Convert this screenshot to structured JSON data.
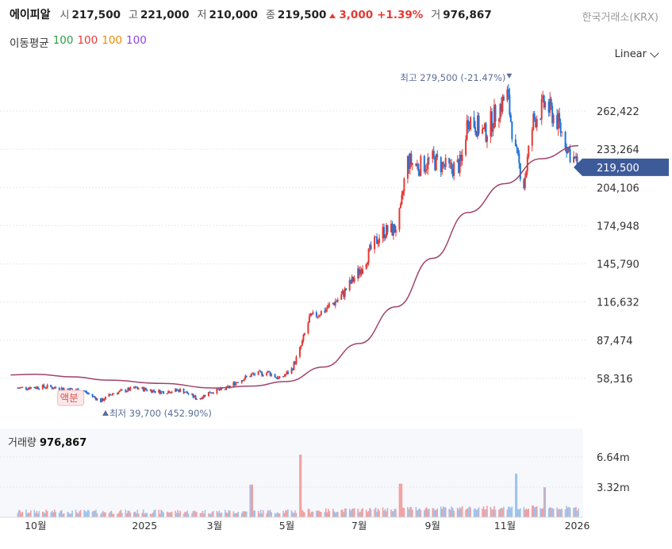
{
  "header": {
    "stock_name": "에이피알",
    "open_label": "시",
    "open_value": "217,500",
    "high_label": "고",
    "high_value": "221,000",
    "low_label": "저",
    "low_value": "210,000",
    "close_label": "종",
    "close_value": "219,500",
    "change_value": "3,000",
    "change_pct": "+1.39%",
    "volume_label": "거",
    "volume_value": "976,867",
    "exchange": "한국거래소(KRX)",
    "up_color": "#e53935"
  },
  "moving_average": {
    "label": "이동평균",
    "periods": [
      "100",
      "100",
      "100",
      "100"
    ],
    "colors": [
      "#2e9e44",
      "#e53935",
      "#f08c00",
      "#8e44ec"
    ]
  },
  "scale_selector": {
    "label": "Linear"
  },
  "chart_data": {
    "type": "candlestick",
    "price_axis_ticks": [
      "262,422",
      "233,264",
      "204,106",
      "174,948",
      "145,790",
      "116,632",
      "87,474",
      "58,316"
    ],
    "price_axis_values": [
      262422,
      233264,
      204106,
      174948,
      145790,
      116632,
      87474,
      58316
    ],
    "current_price_label": "219,500",
    "current_price": 219500,
    "high_annotation": "최고 279,500 (-21.47%)",
    "high_value": 279500,
    "low_annotation": "최저 39,700 (452.90%)",
    "low_value": 39700,
    "event_marker": "액분",
    "time_axis_labels": [
      "10월",
      "2025",
      "3월",
      "5월",
      "7월",
      "9월",
      "11월",
      "2026"
    ],
    "price_path": [
      [
        "2024-09-15",
        51000
      ],
      [
        "2024-10-10",
        52000
      ],
      [
        "2024-10-25",
        50500
      ],
      [
        "2024-11-10",
        49000
      ],
      [
        "2024-11-25",
        41000
      ],
      [
        "2024-12-05",
        47000
      ],
      [
        "2024-12-25",
        51000
      ],
      [
        "2025-01-15",
        48000
      ],
      [
        "2025-02-01",
        49500
      ],
      [
        "2025-02-15",
        42500
      ],
      [
        "2025-02-25",
        48000
      ],
      [
        "2025-03-10",
        50000
      ],
      [
        "2025-03-20",
        56000
      ],
      [
        "2025-04-01",
        61000
      ],
      [
        "2025-04-15",
        63000
      ],
      [
        "2025-04-25",
        58000
      ],
      [
        "2025-05-05",
        65000
      ],
      [
        "2025-05-12",
        80000
      ],
      [
        "2025-05-20",
        104000
      ],
      [
        "2025-06-01",
        110000
      ],
      [
        "2025-06-15",
        120000
      ],
      [
        "2025-07-01",
        140000
      ],
      [
        "2025-07-10",
        155000
      ],
      [
        "2025-07-20",
        170000
      ],
      [
        "2025-07-31",
        172000
      ],
      [
        "2025-08-05",
        185000
      ],
      [
        "2025-08-10",
        225000
      ],
      [
        "2025-08-20",
        220000
      ],
      [
        "2025-09-01",
        225000
      ],
      [
        "2025-09-15",
        218000
      ],
      [
        "2025-09-25",
        222000
      ],
      [
        "2025-10-01",
        258000
      ],
      [
        "2025-10-15",
        245000
      ],
      [
        "2025-10-25",
        262000
      ],
      [
        "2025-11-03",
        275000
      ],
      [
        "2025-11-10",
        230000
      ],
      [
        "2025-11-17",
        207000
      ],
      [
        "2025-11-25",
        255000
      ],
      [
        "2025-12-05",
        268000
      ],
      [
        "2025-12-15",
        255000
      ],
      [
        "2025-12-25",
        232000
      ],
      [
        "2026-01-02",
        219500
      ]
    ],
    "moving_average_100": [
      [
        "2024-09-10",
        61000
      ],
      [
        "2024-10-01",
        61500
      ],
      [
        "2024-11-01",
        59500
      ],
      [
        "2024-12-01",
        57000
      ],
      [
        "2025-01-15",
        54500
      ],
      [
        "2025-03-01",
        51000
      ],
      [
        "2025-04-01",
        52500
      ],
      [
        "2025-05-01",
        56000
      ],
      [
        "2025-06-01",
        67000
      ],
      [
        "2025-07-01",
        85000
      ],
      [
        "2025-08-01",
        113000
      ],
      [
        "2025-09-01",
        150000
      ],
      [
        "2025-10-01",
        185000
      ],
      [
        "2025-11-01",
        207000
      ],
      [
        "2025-12-01",
        226000
      ],
      [
        "2026-01-02",
        236000
      ]
    ],
    "volume_axis_ticks": [
      "6.64m",
      "3.32m"
    ],
    "volume_axis_values": [
      6640000,
      3320000
    ],
    "volume_spikes": [
      [
        "2025-04-01",
        3600000
      ],
      [
        "2025-05-12",
        6900000
      ],
      [
        "2025-08-05",
        3700000
      ],
      [
        "2025-11-10",
        4800000
      ],
      [
        "2025-12-05",
        3300000
      ]
    ],
    "up_color": "#e53935",
    "down_color": "#1e73d9"
  },
  "volume_panel": {
    "label": "거래량",
    "value": "976,867"
  }
}
